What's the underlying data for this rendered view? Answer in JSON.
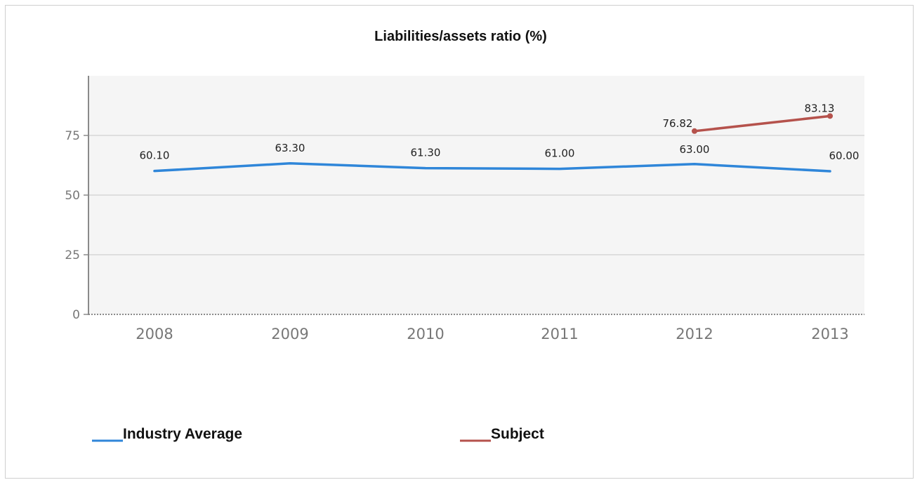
{
  "chart_data": {
    "type": "line",
    "title": "Liabilities/assets ratio (%)",
    "xlabel": "",
    "ylabel": "",
    "categories": [
      "2008",
      "2009",
      "2010",
      "2011",
      "2012",
      "2013"
    ],
    "ylim": [
      0,
      100
    ],
    "yticks": [
      0,
      25,
      50,
      75
    ],
    "grid": true,
    "legend_position": "bottom-left",
    "series": [
      {
        "name": "Industry Average",
        "color": "#2f86d9",
        "values": [
          60.1,
          63.3,
          61.3,
          61.0,
          63.0,
          60.0
        ],
        "labels": [
          "60.10",
          "63.30",
          "61.30",
          "61.00",
          "63.00",
          "60.00"
        ],
        "markers": false
      },
      {
        "name": "Subject",
        "color": "#b5524c",
        "values": [
          null,
          null,
          null,
          null,
          76.82,
          83.13
        ],
        "labels": [
          null,
          null,
          null,
          null,
          "76.82",
          "83.13"
        ],
        "markers": true
      }
    ]
  }
}
